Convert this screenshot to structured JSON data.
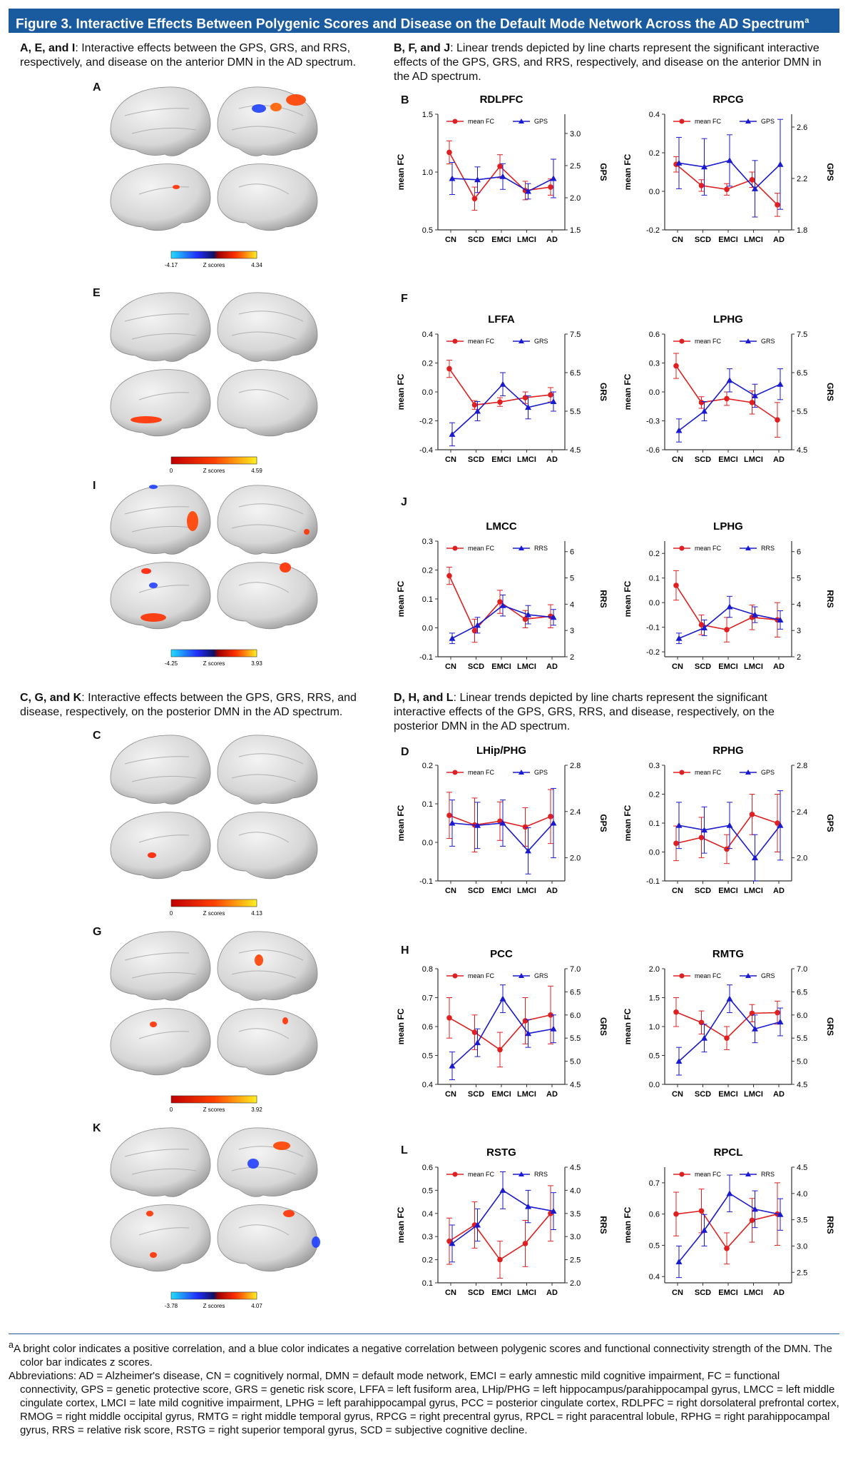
{
  "figure": {
    "title": "Figure 3. Interactive Effects Between Polygenic Scores and Disease on the Default Mode Network Across the AD Spectrum",
    "title_sup": "a"
  },
  "captions": {
    "aei_bold": "A, E, and I",
    "aei_text": ": Interactive effects between the GPS, GRS, and RRS, respectively, and disease on the anterior DMN in the AD spectrum.",
    "bfj_bold": "B, F, and J",
    "bfj_text": ": Linear trends depicted by line charts represent the significant interactive effects of the GPS, GRS, and RRS, respectively, and disease on the anterior DMN in the AD spectrum.",
    "cgk_bold": "C, G, and K",
    "cgk_text": ": Interactive effects between the GPS, GRS, RRS, and disease, respectively, on the posterior DMN in the AD spectrum.",
    "dhl_bold": "D, H, and L",
    "dhl_text": ": Linear trends depicted by line charts represent the significant interactive effects of the GPS, GRS, RRS, and disease, respectively, on the posterior DMN in the AD spectrum."
  },
  "brain_panels": [
    {
      "letter": "A",
      "cb_min": "-4.17",
      "cb_max": "4.34",
      "cb_label": "Z scores",
      "bipolar": true
    },
    {
      "letter": "E",
      "cb_min": "0",
      "cb_max": "4.59",
      "cb_label": "Z scores",
      "bipolar": false
    },
    {
      "letter": "I",
      "cb_min": "-4.25",
      "cb_max": "3.93",
      "cb_label": "Z scores",
      "bipolar": true
    },
    {
      "letter": "C",
      "cb_min": "0",
      "cb_max": "4.13",
      "cb_label": "Z scores",
      "bipolar": false
    },
    {
      "letter": "G",
      "cb_min": "0",
      "cb_max": "3.92",
      "cb_label": "Z scores",
      "bipolar": false
    },
    {
      "letter": "K",
      "cb_min": "-3.78",
      "cb_max": "4.07",
      "cb_label": "Z scores",
      "bipolar": true
    }
  ],
  "colors": {
    "fc": "#e02020",
    "score": "#1a1ad0",
    "header": "#1a5a9e"
  },
  "chart_data": [
    {
      "type": "line",
      "panel": "B",
      "title": "RDLPFC",
      "categories": [
        "CN",
        "SCD",
        "EMCI",
        "LMCI",
        "AD"
      ],
      "ylabel": "mean FC",
      "y2label": "GPS",
      "ylim": [
        0.5,
        1.5
      ],
      "yticks": [
        "0.5",
        "1.0",
        "1.5"
      ],
      "y2lim": [
        1.5,
        3.3
      ],
      "y2ticks": [
        "1.5",
        "2.0",
        "2.5",
        "3.0"
      ],
      "series": [
        {
          "name": "mean FC",
          "axis": "left",
          "values": [
            1.17,
            0.77,
            1.05,
            0.84,
            0.87
          ],
          "err": [
            0.1,
            0.1,
            0.1,
            0.08,
            0.07
          ]
        },
        {
          "name": "GPS",
          "axis": "right",
          "values": [
            2.3,
            2.28,
            2.33,
            2.1,
            2.3
          ],
          "err": [
            0.25,
            0.2,
            0.2,
            0.12,
            0.3
          ]
        }
      ]
    },
    {
      "type": "line",
      "panel": "B",
      "title": "RPCG",
      "categories": [
        "CN",
        "SCD",
        "EMCI",
        "LMCI",
        "AD"
      ],
      "ylabel": "mean FC",
      "y2label": "GPS",
      "ylim": [
        -0.2,
        0.4
      ],
      "yticks": [
        "-0.2",
        "0.0",
        "0.2",
        "0.4"
      ],
      "y2lim": [
        1.8,
        2.7
      ],
      "y2ticks": [
        "1.8",
        "2.2",
        "2.6"
      ],
      "series": [
        {
          "name": "mean FC",
          "axis": "left",
          "values": [
            0.14,
            0.03,
            0.01,
            0.06,
            -0.07
          ],
          "err": [
            0.04,
            0.03,
            0.03,
            0.04,
            0.06
          ]
        },
        {
          "name": "GPS",
          "axis": "right",
          "values": [
            2.32,
            2.29,
            2.34,
            2.12,
            2.31
          ],
          "err": [
            0.2,
            0.22,
            0.2,
            0.22,
            0.35
          ]
        }
      ]
    },
    {
      "type": "line",
      "panel": "F",
      "title": "LFFA",
      "categories": [
        "CN",
        "SCD",
        "EMCI",
        "LMCI",
        "AD"
      ],
      "ylabel": "mean FC",
      "y2label": "GRS",
      "ylim": [
        -0.4,
        0.4
      ],
      "yticks": [
        "-0.4",
        "-0.2",
        "0.0",
        "0.2",
        "0.4"
      ],
      "y2lim": [
        4.5,
        7.5
      ],
      "y2ticks": [
        "4.5",
        "5.5",
        "6.5",
        "7.5"
      ],
      "series": [
        {
          "name": "mean FC",
          "axis": "left",
          "values": [
            0.16,
            -0.09,
            -0.07,
            -0.04,
            -0.02
          ],
          "err": [
            0.06,
            0.03,
            0.03,
            0.04,
            0.05
          ]
        },
        {
          "name": "GRS",
          "axis": "right",
          "values": [
            4.9,
            5.5,
            6.2,
            5.6,
            5.75
          ],
          "err": [
            0.3,
            0.25,
            0.3,
            0.3,
            0.25
          ]
        }
      ]
    },
    {
      "type": "line",
      "panel": "F",
      "title": "LPHG",
      "categories": [
        "CN",
        "SCD",
        "EMCI",
        "LMCI",
        "AD"
      ],
      "ylabel": "mean FC",
      "y2label": "GRS",
      "ylim": [
        -0.6,
        0.6
      ],
      "yticks": [
        "-0.6",
        "-0.3",
        "0.0",
        "0.3",
        "0.6"
      ],
      "y2lim": [
        4.5,
        7.5
      ],
      "y2ticks": [
        "4.5",
        "5.5",
        "6.5",
        "7.5"
      ],
      "series": [
        {
          "name": "mean FC",
          "axis": "left",
          "values": [
            0.27,
            -0.11,
            -0.07,
            -0.11,
            -0.29
          ],
          "err": [
            0.13,
            0.06,
            0.07,
            0.12,
            0.18
          ]
        },
        {
          "name": "GRS",
          "axis": "right",
          "values": [
            5.0,
            5.5,
            6.3,
            5.9,
            6.2
          ],
          "err": [
            0.3,
            0.25,
            0.3,
            0.3,
            0.4
          ]
        }
      ]
    },
    {
      "type": "line",
      "panel": "J",
      "title": "LMCC",
      "categories": [
        "CN",
        "SCD",
        "EMCI",
        "LMCI",
        "AD"
      ],
      "ylabel": "mean FC",
      "y2label": "RRS",
      "ylim": [
        -0.1,
        0.3
      ],
      "yticks": [
        "-0.1",
        "0.0",
        "0.1",
        "0.2",
        "0.3"
      ],
      "y2lim": [
        2,
        6.4
      ],
      "y2ticks": [
        "2",
        "3",
        "4",
        "5",
        "6"
      ],
      "series": [
        {
          "name": "mean FC",
          "axis": "left",
          "values": [
            0.18,
            -0.01,
            0.09,
            0.03,
            0.04
          ],
          "err": [
            0.03,
            0.04,
            0.04,
            0.03,
            0.04
          ]
        },
        {
          "name": "RRS",
          "axis": "right",
          "values": [
            2.7,
            3.2,
            3.95,
            3.6,
            3.5
          ],
          "err": [
            0.2,
            0.3,
            0.4,
            0.35,
            0.3
          ]
        }
      ]
    },
    {
      "type": "line",
      "panel": "J",
      "title": "LPHG",
      "categories": [
        "CN",
        "SCD",
        "EMCI",
        "LMCI",
        "AD"
      ],
      "ylabel": "mean FC",
      "y2label": "RRS",
      "ylim": [
        -0.22,
        0.25
      ],
      "yticks": [
        "-0.2",
        "-0.1",
        "0.0",
        "0.1",
        "0.2"
      ],
      "y2lim": [
        2,
        6.4
      ],
      "y2ticks": [
        "2",
        "3",
        "4",
        "5",
        "6"
      ],
      "series": [
        {
          "name": "mean FC",
          "axis": "left",
          "values": [
            0.07,
            -0.09,
            -0.11,
            -0.06,
            -0.07
          ],
          "err": [
            0.06,
            0.04,
            0.05,
            0.05,
            0.07
          ]
        },
        {
          "name": "RRS",
          "axis": "right",
          "values": [
            2.7,
            3.1,
            3.9,
            3.6,
            3.4
          ],
          "err": [
            0.2,
            0.3,
            0.4,
            0.3,
            0.35
          ]
        }
      ]
    },
    {
      "type": "line",
      "panel": "D",
      "title": "LHip/PHG",
      "categories": [
        "CN",
        "SCD",
        "EMCI",
        "LMCI",
        "AD"
      ],
      "ylabel": "mean FC",
      "y2label": "GPS",
      "ylim": [
        -0.1,
        0.2
      ],
      "yticks": [
        "-0.1",
        "0.0",
        "0.1",
        "0.2"
      ],
      "y2lim": [
        1.8,
        2.8
      ],
      "y2ticks": [
        "2.0",
        "2.4",
        "2.8"
      ],
      "series": [
        {
          "name": "mean FC",
          "axis": "left",
          "values": [
            0.07,
            0.045,
            0.055,
            0.04,
            0.067
          ],
          "err": [
            0.06,
            0.07,
            0.05,
            0.05,
            0.07
          ]
        },
        {
          "name": "GPS",
          "axis": "right",
          "values": [
            2.3,
            2.28,
            2.3,
            2.06,
            2.3
          ],
          "err": [
            0.2,
            0.2,
            0.2,
            0.2,
            0.3
          ]
        }
      ]
    },
    {
      "type": "line",
      "panel": "D",
      "title": "RPHG",
      "categories": [
        "CN",
        "SCD",
        "EMCI",
        "LMCI",
        "AD"
      ],
      "ylabel": "mean FC",
      "y2label": "GPS",
      "ylim": [
        -0.1,
        0.3
      ],
      "yticks": [
        "-0.1",
        "0.0",
        "0.1",
        "0.2",
        "0.3"
      ],
      "y2lim": [
        1.8,
        2.8
      ],
      "y2ticks": [
        "2.0",
        "2.4",
        "2.8"
      ],
      "series": [
        {
          "name": "mean FC",
          "axis": "left",
          "values": [
            0.03,
            0.05,
            0.01,
            0.13,
            0.1
          ],
          "err": [
            0.06,
            0.07,
            0.05,
            0.07,
            0.1
          ]
        },
        {
          "name": "GPS",
          "axis": "right",
          "values": [
            2.28,
            2.24,
            2.28,
            2.0,
            2.28
          ],
          "err": [
            0.2,
            0.2,
            0.2,
            0.2,
            0.3
          ]
        }
      ]
    },
    {
      "type": "line",
      "panel": "H",
      "title": "PCC",
      "categories": [
        "CN",
        "SCD",
        "EMCI",
        "LMCI",
        "AD"
      ],
      "ylabel": "mean FC",
      "y2label": "GRS",
      "ylim": [
        0.4,
        0.8
      ],
      "yticks": [
        "0.4",
        "0.5",
        "0.6",
        "0.7",
        "0.8"
      ],
      "y2lim": [
        4.5,
        7.0
      ],
      "y2ticks": [
        "4.5",
        "5.0",
        "5.5",
        "6.0",
        "6.5",
        "7.0"
      ],
      "series": [
        {
          "name": "mean FC",
          "axis": "left",
          "values": [
            0.63,
            0.58,
            0.52,
            0.62,
            0.64
          ],
          "err": [
            0.07,
            0.06,
            0.06,
            0.08,
            0.1
          ]
        },
        {
          "name": "GRS",
          "axis": "right",
          "values": [
            4.9,
            5.4,
            6.35,
            5.6,
            5.7
          ],
          "err": [
            0.3,
            0.3,
            0.3,
            0.3,
            0.3
          ]
        }
      ]
    },
    {
      "type": "line",
      "panel": "H",
      "title": "RMTG",
      "categories": [
        "CN",
        "SCD",
        "EMCI",
        "LMCI",
        "AD"
      ],
      "ylabel": "mean FC",
      "y2label": "GRS",
      "ylim": [
        0.0,
        2.0
      ],
      "yticks": [
        "0.0",
        "0.5",
        "1.0",
        "1.5",
        "2.0"
      ],
      "y2lim": [
        4.5,
        7.0
      ],
      "y2ticks": [
        "4.5",
        "5.0",
        "5.5",
        "6.0",
        "6.5",
        "7.0"
      ],
      "series": [
        {
          "name": "mean FC",
          "axis": "left",
          "values": [
            1.25,
            1.07,
            0.8,
            1.23,
            1.24
          ],
          "err": [
            0.25,
            0.2,
            0.2,
            0.15,
            0.2
          ]
        },
        {
          "name": "GRS",
          "axis": "right",
          "values": [
            5.0,
            5.5,
            6.35,
            5.7,
            5.85
          ],
          "err": [
            0.3,
            0.3,
            0.3,
            0.3,
            0.3
          ]
        }
      ]
    },
    {
      "type": "line",
      "panel": "L",
      "title": "RSTG",
      "categories": [
        "CN",
        "SCD",
        "EMCI",
        "LMCI",
        "AD"
      ],
      "ylabel": "mean FC",
      "y2label": "RRS",
      "ylim": [
        0.1,
        0.6
      ],
      "yticks": [
        "0.1",
        "0.2",
        "0.3",
        "0.4",
        "0.5",
        "0.6"
      ],
      "y2lim": [
        2.0,
        4.5
      ],
      "y2ticks": [
        "2.0",
        "2.5",
        "3.0",
        "3.5",
        "4.0",
        "4.5"
      ],
      "series": [
        {
          "name": "mean FC",
          "axis": "left",
          "values": [
            0.28,
            0.35,
            0.2,
            0.27,
            0.4
          ],
          "err": [
            0.1,
            0.1,
            0.08,
            0.1,
            0.12
          ]
        },
        {
          "name": "RRS",
          "axis": "right",
          "values": [
            2.85,
            3.25,
            4.0,
            3.65,
            3.55
          ],
          "err": [
            0.4,
            0.35,
            0.4,
            0.35,
            0.4
          ]
        }
      ]
    },
    {
      "type": "line",
      "panel": "L",
      "title": "RPCL",
      "categories": [
        "CN",
        "SCD",
        "EMCI",
        "LMCI",
        "AD"
      ],
      "ylabel": "mean FC",
      "y2label": "RRS",
      "ylim": [
        0.38,
        0.75
      ],
      "yticks": [
        "0.4",
        "0.5",
        "0.6",
        "0.7"
      ],
      "y2lim": [
        2.3,
        4.5
      ],
      "y2ticks": [
        "2.5",
        "3.0",
        "3.5",
        "4.0",
        "4.5"
      ],
      "series": [
        {
          "name": "mean FC",
          "axis": "left",
          "values": [
            0.6,
            0.61,
            0.49,
            0.58,
            0.6
          ],
          "err": [
            0.07,
            0.07,
            0.05,
            0.07,
            0.1
          ]
        },
        {
          "name": "RRS",
          "axis": "right",
          "values": [
            2.7,
            3.3,
            4.0,
            3.7,
            3.6
          ],
          "err": [
            0.3,
            0.3,
            0.35,
            0.35,
            0.3
          ]
        }
      ]
    }
  ],
  "chart_legend": {
    "fc": "mean FC"
  },
  "chart_letters": [
    "B",
    "F",
    "J",
    "D",
    "H",
    "L"
  ],
  "footnotes": {
    "note_sup": "a",
    "note": "A bright color indicates a positive correlation, and a blue color indicates a negative correlation between polygenic scores and functional connectivity strength of the DMN. The color bar indicates z scores.",
    "abbrev": "Abbreviations: AD = Alzheimer's disease, CN = cognitively normal, DMN = default mode network, EMCI = early amnestic mild cognitive impairment, FC = functional connectivity, GPS = genetic protective score, GRS = genetic risk score, LFFA = left fusiform area, LHip/PHG = left hippocampus/parahippocampal gyrus, LMCC = left middle cingulate cortex, LMCI = late mild cognitive impairment, LPHG = left parahippocampal gyrus, PCC = posterior cingulate cortex, RDLPFC = right dorsolateral prefrontal cortex, RMOG = right middle occipital gyrus, RMTG = right middle temporal gyrus, RPCG = right precentral gyrus, RPCL = right paracentral lobule, RPHG = right parahippocampal gyrus, RRS = relative risk score, RSTG = right superior temporal gyrus, SCD = subjective cognitive decline."
  }
}
